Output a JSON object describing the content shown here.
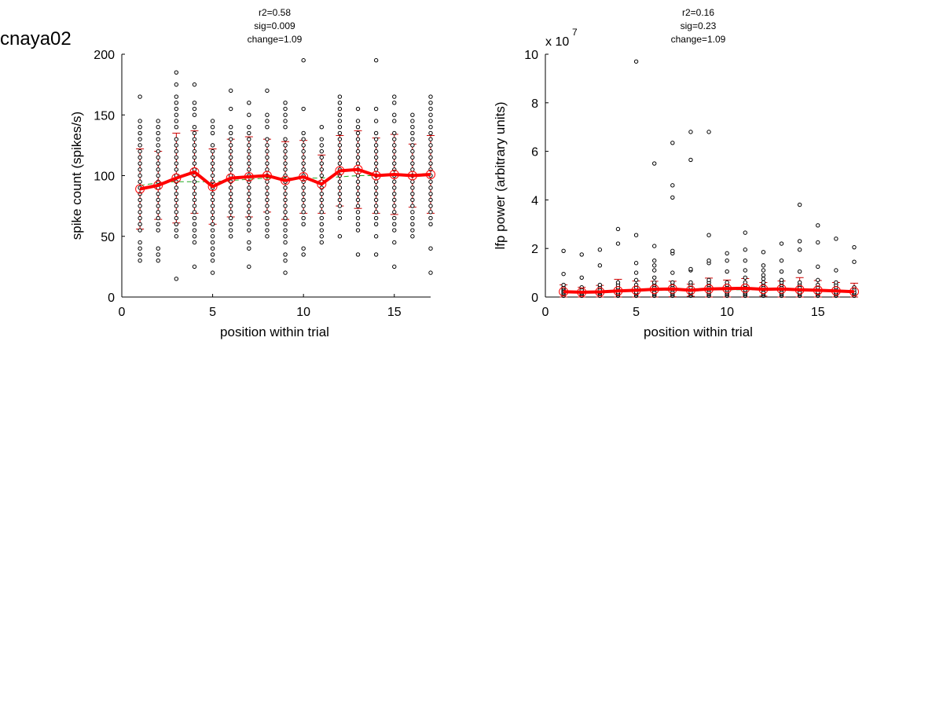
{
  "figure_label": "cnaya02",
  "chart_data": [
    {
      "type": "scatter",
      "panel": "spike",
      "stats": [
        "r2=0.58",
        "sig=0.009",
        "change=1.09"
      ],
      "xlabel": "position within trial",
      "ylabel": "spike count (spikes/s)",
      "xlim": [
        0,
        17
      ],
      "ylim": [
        0,
        200
      ],
      "xticks": [
        0,
        5,
        10,
        15
      ],
      "xtick_labels": [
        "0",
        "5",
        "10",
        "15"
      ],
      "yticks": [
        0,
        50,
        100,
        150,
        200
      ],
      "ytick_labels": [
        "0",
        "50",
        "100",
        "150",
        "200"
      ],
      "exponent_label": "",
      "grid": false,
      "colors": {
        "mean_line": "#ff0000",
        "error_bar": "#cc0000",
        "fit_line": "#22aa22",
        "points": "#000000"
      },
      "trial_points": [
        {
          "x": 1,
          "y": [
            30,
            35,
            40,
            45,
            55,
            60,
            65,
            70,
            75,
            80,
            85,
            90,
            95,
            100,
            105,
            110,
            115,
            120,
            125,
            130,
            135,
            140,
            145,
            165
          ]
        },
        {
          "x": 2,
          "y": [
            30,
            35,
            40,
            55,
            60,
            65,
            70,
            75,
            80,
            85,
            90,
            95,
            100,
            105,
            110,
            115,
            120,
            125,
            130,
            135,
            140,
            145
          ]
        },
        {
          "x": 3,
          "y": [
            15,
            50,
            55,
            60,
            65,
            70,
            75,
            80,
            85,
            90,
            95,
            100,
            105,
            110,
            115,
            120,
            125,
            130,
            140,
            145,
            150,
            155,
            160,
            165,
            175,
            185
          ]
        },
        {
          "x": 4,
          "y": [
            25,
            45,
            50,
            55,
            60,
            65,
            70,
            75,
            80,
            85,
            90,
            95,
            100,
            105,
            110,
            115,
            120,
            125,
            130,
            135,
            140,
            150,
            155,
            160,
            175
          ]
        },
        {
          "x": 5,
          "y": [
            20,
            30,
            35,
            40,
            45,
            50,
            55,
            60,
            65,
            70,
            75,
            80,
            85,
            90,
            95,
            100,
            105,
            110,
            115,
            120,
            125,
            135,
            140,
            145
          ]
        },
        {
          "x": 6,
          "y": [
            50,
            55,
            60,
            65,
            70,
            75,
            80,
            85,
            90,
            95,
            100,
            105,
            110,
            115,
            120,
            125,
            130,
            135,
            140,
            155,
            170
          ]
        },
        {
          "x": 7,
          "y": [
            25,
            40,
            45,
            55,
            60,
            65,
            70,
            75,
            80,
            85,
            90,
            95,
            100,
            105,
            110,
            115,
            120,
            125,
            130,
            135,
            140,
            150,
            160
          ]
        },
        {
          "x": 8,
          "y": [
            50,
            55,
            60,
            65,
            70,
            75,
            80,
            85,
            90,
            95,
            100,
            105,
            110,
            115,
            120,
            125,
            130,
            140,
            145,
            150,
            170
          ]
        },
        {
          "x": 9,
          "y": [
            20,
            30,
            35,
            45,
            50,
            55,
            60,
            65,
            70,
            75,
            80,
            85,
            90,
            95,
            100,
            105,
            110,
            115,
            120,
            125,
            130,
            140,
            145,
            150,
            155,
            160
          ]
        },
        {
          "x": 10,
          "y": [
            35,
            40,
            60,
            65,
            70,
            75,
            80,
            85,
            90,
            95,
            100,
            105,
            110,
            115,
            120,
            125,
            130,
            135,
            155,
            195
          ]
        },
        {
          "x": 11,
          "y": [
            45,
            50,
            55,
            60,
            65,
            70,
            75,
            80,
            85,
            90,
            95,
            100,
            105,
            110,
            115,
            120,
            125,
            130,
            140
          ]
        },
        {
          "x": 12,
          "y": [
            50,
            65,
            70,
            75,
            80,
            85,
            90,
            95,
            100,
            105,
            110,
            115,
            120,
            125,
            130,
            135,
            140,
            145,
            150,
            155,
            160,
            165
          ]
        },
        {
          "x": 13,
          "y": [
            35,
            55,
            60,
            65,
            70,
            75,
            80,
            85,
            90,
            95,
            100,
            105,
            110,
            115,
            120,
            125,
            130,
            135,
            140,
            145,
            155
          ]
        },
        {
          "x": 14,
          "y": [
            35,
            50,
            60,
            65,
            70,
            75,
            80,
            85,
            90,
            95,
            100,
            105,
            110,
            115,
            120,
            125,
            130,
            135,
            145,
            155,
            195
          ]
        },
        {
          "x": 15,
          "y": [
            25,
            45,
            55,
            60,
            65,
            70,
            75,
            80,
            85,
            90,
            95,
            100,
            105,
            110,
            115,
            120,
            125,
            130,
            135,
            145,
            150,
            160,
            165
          ]
        },
        {
          "x": 16,
          "y": [
            50,
            55,
            60,
            65,
            70,
            75,
            80,
            85,
            90,
            95,
            100,
            105,
            110,
            115,
            120,
            125,
            130,
            135,
            140,
            145,
            150
          ]
        },
        {
          "x": 17,
          "y": [
            20,
            40,
            60,
            65,
            70,
            75,
            80,
            85,
            90,
            95,
            100,
            105,
            110,
            115,
            120,
            125,
            130,
            135,
            140,
            145,
            150,
            155,
            160,
            165
          ]
        }
      ],
      "mean": {
        "x": [
          1,
          2,
          3,
          4,
          5,
          6,
          7,
          8,
          9,
          10,
          11,
          12,
          13,
          14,
          15,
          16,
          17
        ],
        "y": [
          89,
          92,
          98,
          103,
          91,
          98,
          99,
          100,
          96,
          99,
          93,
          104,
          105,
          100,
          101,
          100,
          101
        ]
      },
      "sd": [
        33,
        28,
        37,
        34,
        31,
        32,
        33,
        30,
        32,
        30,
        24,
        29,
        32,
        31,
        33,
        26,
        32
      ],
      "fit": {
        "x": [
          1,
          2,
          3,
          4,
          5,
          6,
          7,
          8,
          9,
          10,
          11,
          12,
          13,
          14,
          15,
          16,
          17
        ],
        "y": [
          92,
          94,
          95,
          95,
          95,
          96,
          97,
          98,
          98,
          98,
          98,
          99,
          100,
          100,
          101,
          101,
          102
        ]
      }
    },
    {
      "type": "scatter",
      "panel": "lfp",
      "stats": [
        "r2=0.16",
        "sig=0.23",
        "change=1.09"
      ],
      "xlabel": "position within trial",
      "ylabel": "lfp power (arbitrary units)",
      "xlim": [
        0,
        17
      ],
      "ylim": [
        0,
        10
      ],
      "xticks": [
        0,
        5,
        10,
        15
      ],
      "xtick_labels": [
        "0",
        "5",
        "10",
        "15"
      ],
      "yticks": [
        0,
        2,
        4,
        6,
        8,
        10
      ],
      "ytick_labels": [
        "0",
        "2",
        "4",
        "6",
        "8",
        "10"
      ],
      "exponent_label": "x 10",
      "exponent_power": "7",
      "grid": false,
      "colors": {
        "mean_line": "#ff0000",
        "error_bar": "#cc0000",
        "fit_line": "#22aa22",
        "points": "#000000"
      },
      "trial_points": [
        {
          "x": 1,
          "y": [
            0.05,
            0.1,
            0.15,
            0.2,
            0.25,
            0.3,
            0.35,
            0.4,
            0.5,
            0.95,
            1.9
          ]
        },
        {
          "x": 2,
          "y": [
            0.05,
            0.1,
            0.15,
            0.2,
            0.25,
            0.3,
            0.4,
            0.8,
            1.75
          ]
        },
        {
          "x": 3,
          "y": [
            0.05,
            0.1,
            0.15,
            0.2,
            0.25,
            0.3,
            0.4,
            0.5,
            1.3,
            1.95
          ]
        },
        {
          "x": 4,
          "y": [
            0.05,
            0.1,
            0.15,
            0.2,
            0.3,
            0.4,
            0.5,
            0.6,
            2.2,
            2.8
          ]
        },
        {
          "x": 5,
          "y": [
            0.05,
            0.1,
            0.15,
            0.2,
            0.3,
            0.4,
            0.5,
            0.7,
            1.0,
            1.4,
            2.55,
            9.7
          ]
        },
        {
          "x": 6,
          "y": [
            0.05,
            0.1,
            0.15,
            0.2,
            0.3,
            0.4,
            0.5,
            0.6,
            0.8,
            1.1,
            1.3,
            1.5,
            2.1,
            5.5
          ]
        },
        {
          "x": 7,
          "y": [
            0.05,
            0.1,
            0.15,
            0.2,
            0.3,
            0.4,
            0.5,
            0.6,
            1.0,
            1.8,
            1.9,
            4.1,
            4.6,
            6.35
          ]
        },
        {
          "x": 8,
          "y": [
            0.05,
            0.1,
            0.15,
            0.2,
            0.3,
            0.4,
            0.5,
            0.6,
            1.1,
            1.15,
            5.65,
            6.8
          ]
        },
        {
          "x": 9,
          "y": [
            0.05,
            0.1,
            0.15,
            0.2,
            0.3,
            0.4,
            0.5,
            0.6,
            0.7,
            1.4,
            1.5,
            2.55,
            6.8
          ]
        },
        {
          "x": 10,
          "y": [
            0.05,
            0.1,
            0.15,
            0.2,
            0.3,
            0.4,
            0.5,
            0.6,
            1.05,
            1.5,
            1.8
          ]
        },
        {
          "x": 11,
          "y": [
            0.05,
            0.1,
            0.15,
            0.2,
            0.3,
            0.4,
            0.5,
            0.6,
            0.8,
            1.1,
            1.5,
            1.95,
            2.65
          ]
        },
        {
          "x": 12,
          "y": [
            0.05,
            0.1,
            0.15,
            0.2,
            0.3,
            0.4,
            0.5,
            0.6,
            0.75,
            0.9,
            1.1,
            1.3,
            1.85
          ]
        },
        {
          "x": 13,
          "y": [
            0.05,
            0.1,
            0.15,
            0.2,
            0.3,
            0.4,
            0.5,
            0.6,
            0.7,
            1.05,
            1.5,
            2.2
          ]
        },
        {
          "x": 14,
          "y": [
            0.05,
            0.1,
            0.15,
            0.2,
            0.3,
            0.4,
            0.5,
            0.6,
            1.05,
            1.95,
            2.3,
            3.8
          ]
        },
        {
          "x": 15,
          "y": [
            0.05,
            0.1,
            0.15,
            0.2,
            0.3,
            0.4,
            0.5,
            0.7,
            1.25,
            2.25,
            2.95
          ]
        },
        {
          "x": 16,
          "y": [
            0.05,
            0.1,
            0.15,
            0.2,
            0.3,
            0.4,
            0.5,
            0.6,
            1.1,
            2.4
          ]
        },
        {
          "x": 17,
          "y": [
            0.05,
            0.1,
            0.15,
            0.2,
            0.3,
            0.4,
            1.45,
            2.05
          ]
        }
      ],
      "mean": {
        "x": [
          1,
          2,
          3,
          4,
          5,
          6,
          7,
          8,
          9,
          10,
          11,
          12,
          13,
          14,
          15,
          16,
          17
        ],
        "y": [
          0.22,
          0.2,
          0.21,
          0.25,
          0.28,
          0.32,
          0.33,
          0.28,
          0.33,
          0.35,
          0.36,
          0.32,
          0.33,
          0.3,
          0.28,
          0.25,
          0.22
        ]
      },
      "sd": [
        0.28,
        0.2,
        0.27,
        0.48,
        0.38,
        0.33,
        0.32,
        0.25,
        0.45,
        0.35,
        0.4,
        0.28,
        0.33,
        0.5,
        0.4,
        0.35,
        0.35
      ],
      "fit": {
        "x": [
          1,
          2,
          3,
          4,
          5,
          6,
          7,
          8,
          9,
          10,
          11,
          12,
          13,
          14,
          15,
          16,
          17
        ],
        "y": [
          0.22,
          0.23,
          0.24,
          0.25,
          0.26,
          0.27,
          0.28,
          0.29,
          0.3,
          0.3,
          0.3,
          0.3,
          0.29,
          0.28,
          0.26,
          0.24,
          0.22
        ]
      }
    }
  ]
}
